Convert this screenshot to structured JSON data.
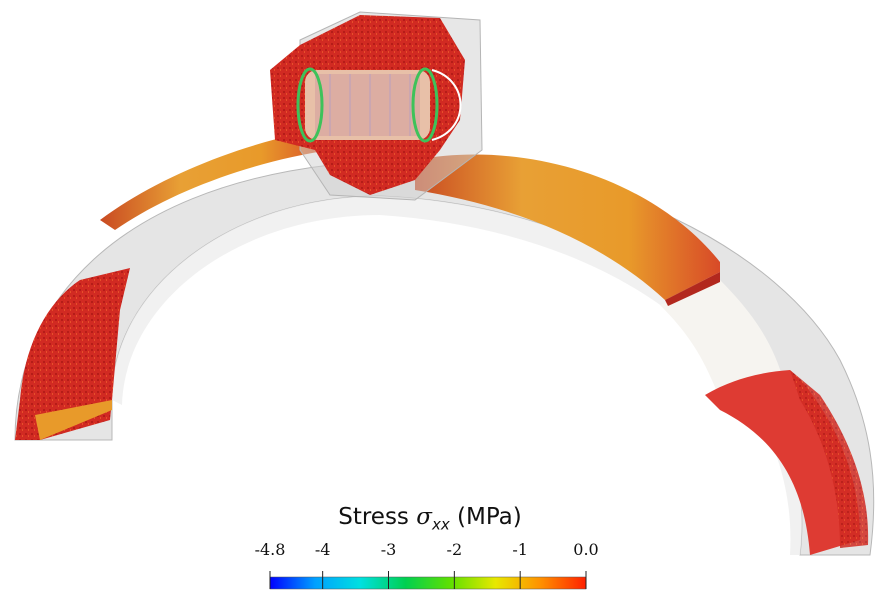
{
  "colorbar": {
    "title_prefix": "Stress ",
    "symbol": "σ",
    "subscript": "xx",
    "unit": " (MPa)",
    "range": [
      -4.8,
      0.0
    ],
    "ticks": [
      {
        "value": -4.8,
        "label": "-4.8"
      },
      {
        "value": -4,
        "label": "-4"
      },
      {
        "value": -3,
        "label": "-3"
      },
      {
        "value": -2,
        "label": "-2"
      },
      {
        "value": -1,
        "label": "-1"
      },
      {
        "value": 0.0,
        "label": "0.0"
      }
    ],
    "colormap": [
      "#0000ff",
      "#00a0ff",
      "#00e0e0",
      "#00d050",
      "#60e000",
      "#e8e800",
      "#ff9000",
      "#ff2000"
    ]
  },
  "colors": {
    "stress_high": "#d9332a",
    "stress_mid": "#e89a2a",
    "transparent_shell": "#c8c8c8",
    "background": "#ffffff"
  }
}
